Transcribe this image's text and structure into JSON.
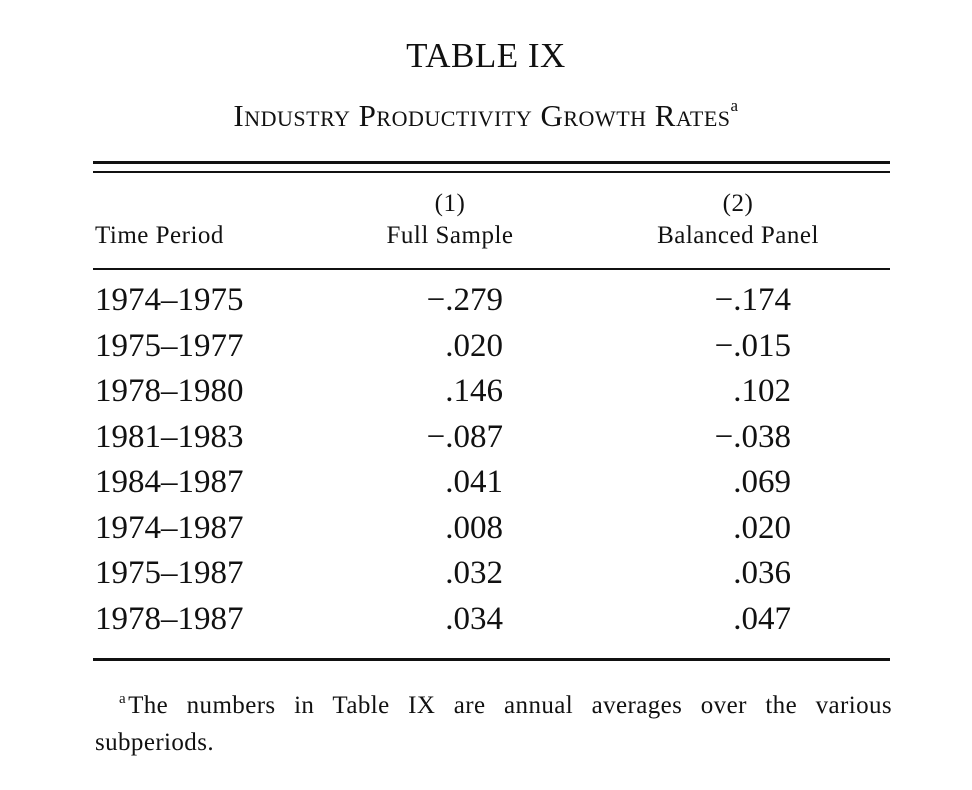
{
  "table": {
    "number": "TABLE IX",
    "caption": "Industry Productivity Growth Rates",
    "caption_note_mark": "a",
    "headers": {
      "period": "Time Period",
      "col1_number": "(1)",
      "col1_label": "Full Sample",
      "col2_number": "(2)",
      "col2_label": "Balanced Panel"
    },
    "rows": [
      {
        "period": "1974–1975",
        "full_sample": "−.279",
        "balanced_panel": "−.174"
      },
      {
        "period": "1975–1977",
        "full_sample": ".020",
        "balanced_panel": "−.015"
      },
      {
        "period": "1978–1980",
        "full_sample": ".146",
        "balanced_panel": ".102"
      },
      {
        "period": "1981–1983",
        "full_sample": "−.087",
        "balanced_panel": "−.038"
      },
      {
        "period": "1984–1987",
        "full_sample": ".041",
        "balanced_panel": ".069"
      },
      {
        "period": "1974–1987",
        "full_sample": ".008",
        "balanced_panel": ".020"
      },
      {
        "period": "1975–1987",
        "full_sample": ".032",
        "balanced_panel": ".036"
      },
      {
        "period": "1978–1987",
        "full_sample": ".034",
        "balanced_panel": ".047"
      }
    ],
    "footnote_mark": "a",
    "footnote": "The numbers in Table IX are annual averages over the various subperiods."
  }
}
